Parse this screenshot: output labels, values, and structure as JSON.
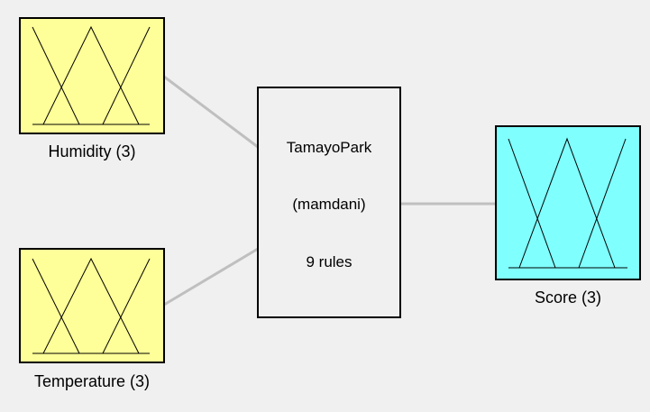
{
  "colors": {
    "background": "#f0f0f0",
    "input_fill": "#ffff99",
    "output_fill": "#80ffff",
    "system_fill": "#f0f0f0",
    "connector": "#bfbfbf",
    "stroke": "#000000"
  },
  "inputs": [
    {
      "name": "Humidity",
      "label": "Humidity (3)",
      "mf_count": 3
    },
    {
      "name": "Temperature",
      "label": "Temperature (3)",
      "mf_count": 3
    }
  ],
  "system": {
    "name": "TamayoPark",
    "type": "(mamdani)",
    "rules": "9 rules"
  },
  "outputs": [
    {
      "name": "Score",
      "label": "Score (3)",
      "mf_count": 3
    }
  ]
}
